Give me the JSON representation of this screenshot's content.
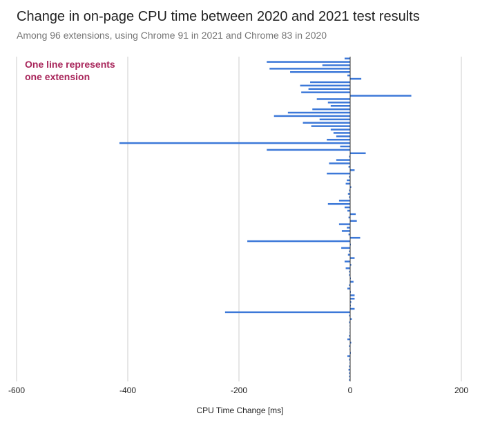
{
  "colors": {
    "bar": "#3c78d8",
    "grid": "#cccccc",
    "annotation": "#a8255a",
    "text": "#222222",
    "subtitle": "#757575"
  },
  "chart_data": {
    "type": "bar",
    "orientation": "horizontal",
    "title": "Change in on-page CPU time between 2020 and 2021 test results",
    "subtitle": "Among 96 extensions, using Chrome 91 in 2021 and Chrome 83 in 2020",
    "xlabel": "CPU Time Change [ms]",
    "ylabel": "",
    "xlim": [
      -600,
      200
    ],
    "xticks": [
      -600,
      -400,
      -200,
      0,
      200
    ],
    "xtick_labels": [
      "-600",
      "-400",
      "-200",
      "0",
      "200"
    ],
    "grid": true,
    "legend": "none",
    "annotation": [
      "One line represents",
      "one extension"
    ],
    "values": [
      -10,
      -150,
      -50,
      -145,
      -108,
      -5,
      20,
      -72,
      -90,
      -75,
      -88,
      110,
      -60,
      -40,
      -35,
      -68,
      -112,
      -137,
      -55,
      -85,
      -70,
      -35,
      -30,
      -25,
      -42,
      -415,
      -18,
      -150,
      28,
      -2,
      -25,
      -38,
      -3,
      8,
      -42,
      -2,
      -6,
      -8,
      2,
      -2,
      -4,
      -2,
      -20,
      -40,
      -10,
      -5,
      10,
      -3,
      12,
      -20,
      -6,
      -15,
      -3,
      18,
      -185,
      0,
      -16,
      -2,
      -4,
      8,
      -10,
      2,
      -8,
      -2,
      -2,
      0,
      6,
      -2,
      -5,
      0,
      8,
      8,
      2,
      0,
      8,
      -225,
      -2,
      3,
      -2,
      -1,
      -1,
      -1,
      -2,
      -5,
      2,
      -2,
      -1,
      0,
      -5,
      -2,
      -1,
      -2,
      -3,
      -2,
      -2,
      -2
    ]
  }
}
